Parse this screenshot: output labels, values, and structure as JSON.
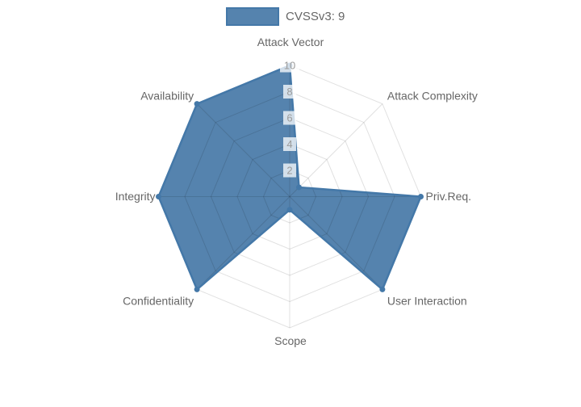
{
  "legend": {
    "label": "CVSSv3: 9"
  },
  "chart_data": {
    "type": "radar",
    "title": "CVSSv3: 9",
    "categories": [
      "Attack Vector",
      "Attack Complexity",
      "Priv.Req.",
      "User Interaction",
      "Scope",
      "Confidentiality",
      "Integrity",
      "Availability"
    ],
    "series": [
      {
        "name": "CVSSv3: 9",
        "values": [
          10,
          1,
          10,
          10,
          1,
          10,
          10,
          10
        ]
      }
    ],
    "ticks": [
      2,
      4,
      6,
      8,
      10
    ],
    "rmax": 10,
    "grid": "polygon-web",
    "legend_position": "top",
    "colors": {
      "fill": "rgba(72,122,168,0.93)",
      "stroke": "#4478a8",
      "grid": "rgba(0,0,0,0.12)",
      "tick_text": "#9b9b9b",
      "tick_backdrop": "rgba(255,255,255,0.75)",
      "label_text": "#666666"
    }
  }
}
